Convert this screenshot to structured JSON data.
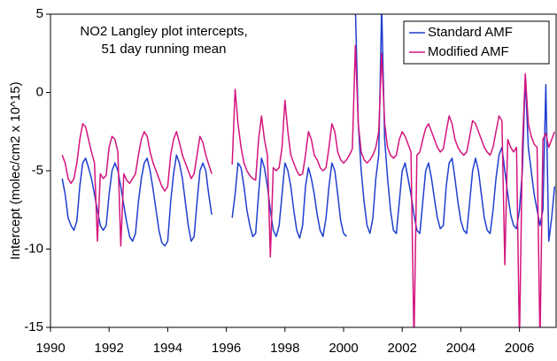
{
  "chart_data": {
    "type": "line",
    "annotations": [
      "NO2 Langley plot intercepts,",
      "51 day running mean"
    ],
    "ylabel": "Intercept (molec/cm2 x 10^15)",
    "xlim": [
      1990,
      2007.25
    ],
    "xticks": [
      1990,
      1992,
      1994,
      1996,
      1998,
      2000,
      2002,
      2004,
      2006
    ],
    "ylim": [
      -15,
      5
    ],
    "yticks": [
      5,
      0,
      -5,
      -10,
      -15
    ],
    "grid": false,
    "legend": "top-right",
    "x": [
      1990.4,
      1990.5,
      1990.6,
      1990.7,
      1990.8,
      1990.9,
      1991.0,
      1991.1,
      1991.2,
      1991.3,
      1991.4,
      1991.5,
      1991.6,
      1991.7,
      1991.8,
      1991.9,
      1992.0,
      1992.1,
      1992.2,
      1992.3,
      1992.4,
      1992.5,
      1992.6,
      1992.7,
      1992.8,
      1992.9,
      1993.0,
      1993.1,
      1993.2,
      1993.3,
      1993.4,
      1993.5,
      1993.6,
      1993.7,
      1993.8,
      1993.9,
      1994.0,
      1994.1,
      1994.2,
      1994.3,
      1994.4,
      1994.5,
      1994.6,
      1994.7,
      1994.8,
      1994.9,
      1995.0,
      1995.1,
      1995.2,
      1995.3,
      1995.4,
      1995.5,
      1995.6,
      1995.7,
      1995.8,
      1995.9,
      1996.0,
      1996.1,
      1996.2,
      1996.3,
      1996.4,
      1996.5,
      1996.6,
      1996.7,
      1996.8,
      1996.9,
      1997.0,
      1997.1,
      1997.2,
      1997.3,
      1997.4,
      1997.5,
      1997.6,
      1997.7,
      1997.8,
      1997.9,
      1998.0,
      1998.1,
      1998.2,
      1998.3,
      1998.4,
      1998.5,
      1998.6,
      1998.7,
      1998.8,
      1998.9,
      1999.0,
      1999.1,
      1999.2,
      1999.3,
      1999.4,
      1999.5,
      1999.6,
      1999.7,
      1999.8,
      1999.9,
      2000.0,
      2000.1,
      2000.2,
      2000.3,
      2000.4,
      2000.5,
      2000.6,
      2000.7,
      2000.8,
      2000.9,
      2001.0,
      2001.1,
      2001.2,
      2001.3,
      2001.4,
      2001.5,
      2001.6,
      2001.7,
      2001.8,
      2001.9,
      2002.0,
      2002.1,
      2002.2,
      2002.3,
      2002.4,
      2002.5,
      2002.6,
      2002.7,
      2002.8,
      2002.9,
      2003.0,
      2003.1,
      2003.2,
      2003.3,
      2003.4,
      2003.5,
      2003.6,
      2003.7,
      2003.8,
      2003.9,
      2004.0,
      2004.1,
      2004.2,
      2004.3,
      2004.4,
      2004.5,
      2004.6,
      2004.7,
      2004.8,
      2004.9,
      2005.0,
      2005.1,
      2005.2,
      2005.3,
      2005.4,
      2005.5,
      2005.6,
      2005.7,
      2005.8,
      2005.9,
      2006.0,
      2006.1,
      2006.2,
      2006.3,
      2006.4,
      2006.5,
      2006.6,
      2006.7,
      2006.8,
      2006.9,
      2007.0,
      2007.1,
      2007.2
    ],
    "series": [
      {
        "name": "Standard AMF",
        "color": "#1f3fd0",
        "values": [
          -5.5,
          -6.5,
          -8,
          -8.5,
          -8.8,
          -8.2,
          -6,
          -4.5,
          -4.2,
          -4.8,
          -5.5,
          -6.5,
          -7.5,
          -8.5,
          -8.8,
          -8.5,
          -6.5,
          -5,
          -4.5,
          -5,
          -6,
          -7.2,
          -8.3,
          -9.2,
          -9.5,
          -9,
          -7,
          -5.5,
          -4.5,
          -4.2,
          -5,
          -6.2,
          -7.5,
          -8.8,
          -9.6,
          -9.8,
          -9.5,
          -7,
          -5.2,
          -4,
          -4.5,
          -5.5,
          -7,
          -8.5,
          -9.5,
          -9.2,
          -7,
          -5,
          -4.5,
          -5,
          -6.5,
          -7.8,
          null,
          null,
          null,
          null,
          null,
          null,
          -8,
          -6.5,
          -4.5,
          -4.8,
          -6,
          -7.5,
          -8.5,
          -9.2,
          -9,
          -6.5,
          -4.2,
          -4.8,
          -6,
          -7.5,
          -8.8,
          -9.2,
          -8.5,
          -6.5,
          -4.5,
          -5,
          -6,
          -7.5,
          -8.8,
          -9.3,
          -8.5,
          -6,
          -4.8,
          -5.5,
          -6.5,
          -7.8,
          -8.8,
          -9.2,
          -8,
          -6,
          -4.5,
          -5,
          -6.5,
          -8.2,
          -9,
          -9.2,
          null,
          null,
          5.5,
          -2,
          -5,
          -7,
          -8.5,
          -9,
          -8,
          -5.5,
          -4,
          5.5,
          -3,
          -5.5,
          -7.5,
          -8.8,
          -9,
          -7,
          -5,
          -4.5,
          -5.5,
          -6.5,
          -7.8,
          -8.8,
          -9,
          -7,
          -5,
          -4.5,
          -5.5,
          -6.8,
          -8,
          -8.7,
          -8.5,
          -6,
          -4.5,
          -4.2,
          -5.5,
          -7,
          -8.2,
          -8.8,
          -9,
          -7,
          -5,
          -4.2,
          -5,
          -6.5,
          -8,
          -8.8,
          -9,
          -7.5,
          -5.5,
          -4,
          -3.5,
          -5,
          -6.5,
          -7.8,
          -8.5,
          -8.7,
          -7.5,
          -5,
          1,
          -3.5,
          -5,
          -6.5,
          -7.5,
          -8.5,
          -7.5,
          0.5,
          -9.5,
          -8,
          -6
        ]
      },
      {
        "name": "Modified AMF",
        "color": "#d4147e",
        "values": [
          -4,
          -4.5,
          -5.5,
          -5.8,
          -5.5,
          -4.5,
          -3,
          -2,
          -2.2,
          -3,
          -3.8,
          -4.5,
          -9.5,
          -5.2,
          -5.5,
          -5.3,
          -3.5,
          -2.8,
          -3,
          -3.8,
          -9.8,
          -5.2,
          -5.6,
          -5.8,
          -5.5,
          -5.2,
          -4,
          -3,
          -2.5,
          -2.8,
          -3.8,
          -4.5,
          -5,
          -5.5,
          -6,
          -6.3,
          -6,
          -4,
          -3,
          -2.5,
          -3.2,
          -4,
          -4.5,
          -5,
          -5.5,
          -5.2,
          -4,
          -2.8,
          -3.2,
          -4,
          -4.6,
          -5.2,
          null,
          null,
          null,
          null,
          null,
          null,
          -4.6,
          0.2,
          -2,
          -3.5,
          -4.5,
          -5,
          -5.3,
          -5.5,
          -5.6,
          -3,
          -1.5,
          -3,
          -4,
          -10.5,
          -4.8,
          -5,
          -4.8,
          -3.5,
          -0.5,
          -2.5,
          -4,
          -4.5,
          -5,
          -5.3,
          -5.2,
          -4,
          -2.5,
          -3,
          -4,
          -4.3,
          -4.8,
          -5,
          -4.8,
          -3.5,
          -2,
          -2.5,
          -3.8,
          -4.3,
          -4.5,
          -4.3,
          -4,
          -3.6,
          3,
          -2,
          -3.8,
          -4.3,
          -4.5,
          -4.3,
          -4,
          -3.5,
          -2.5,
          2.5,
          -2,
          -3.5,
          -4,
          -4.2,
          -4,
          -3,
          -2.5,
          -2.8,
          -3.3,
          -3.8,
          -16,
          -4,
          -3.8,
          -3,
          -2.3,
          -2,
          -2.5,
          -3,
          -3.5,
          -3.8,
          -3.6,
          -2.5,
          -1.5,
          -2,
          -3,
          -3.5,
          -3.8,
          -4,
          -3.8,
          -2.8,
          -1.8,
          -2,
          -2.5,
          -3,
          -3.5,
          -3.8,
          -4,
          -3.5,
          -2.5,
          -1.5,
          -1.8,
          -11,
          -3,
          -3.5,
          -3.8,
          -3.5,
          -16,
          -3.5,
          1.2,
          -2,
          -2.8,
          -3.3,
          -3.5,
          -16,
          -3,
          -2.6,
          -3.5,
          -3,
          -2.5
        ]
      }
    ]
  }
}
